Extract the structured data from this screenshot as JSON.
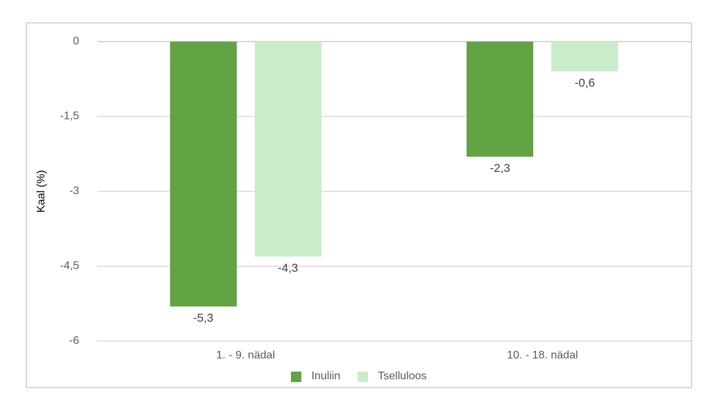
{
  "chart_data": {
    "type": "bar",
    "title": "",
    "ylabel": "Kaal (%)",
    "xlabel": "",
    "categories": [
      "1. - 9. nädal",
      "10. - 18. nädal"
    ],
    "series": [
      {
        "name": "Inuliin",
        "color": "#62a343",
        "values": [
          -5.3,
          -2.3
        ],
        "value_labels": [
          "-5,3",
          "-2,3"
        ]
      },
      {
        "name": "Tselluloos",
        "color": "#c9edca",
        "values": [
          -4.3,
          -0.6
        ],
        "value_labels": [
          "-4,3",
          "-0,6"
        ]
      }
    ],
    "yticks": [
      {
        "value": 0,
        "label": "0"
      },
      {
        "value": -1.5,
        "label": "-1,5"
      },
      {
        "value": -3,
        "label": "-3"
      },
      {
        "value": -4.5,
        "label": "-4,5"
      },
      {
        "value": -6,
        "label": "-6"
      }
    ],
    "ylim": [
      -6,
      0
    ],
    "grid": true,
    "legend_position": "bottom",
    "colors": {
      "frame_border": "#d9d9d9",
      "gridline": "#e3e3e3",
      "zero_line": "#d8d8d8",
      "tick_text": "#595959",
      "category_text": "#595959",
      "legend_text": "#595959",
      "value_label_text": "#3f3f3f",
      "background": "#ffffff"
    }
  }
}
